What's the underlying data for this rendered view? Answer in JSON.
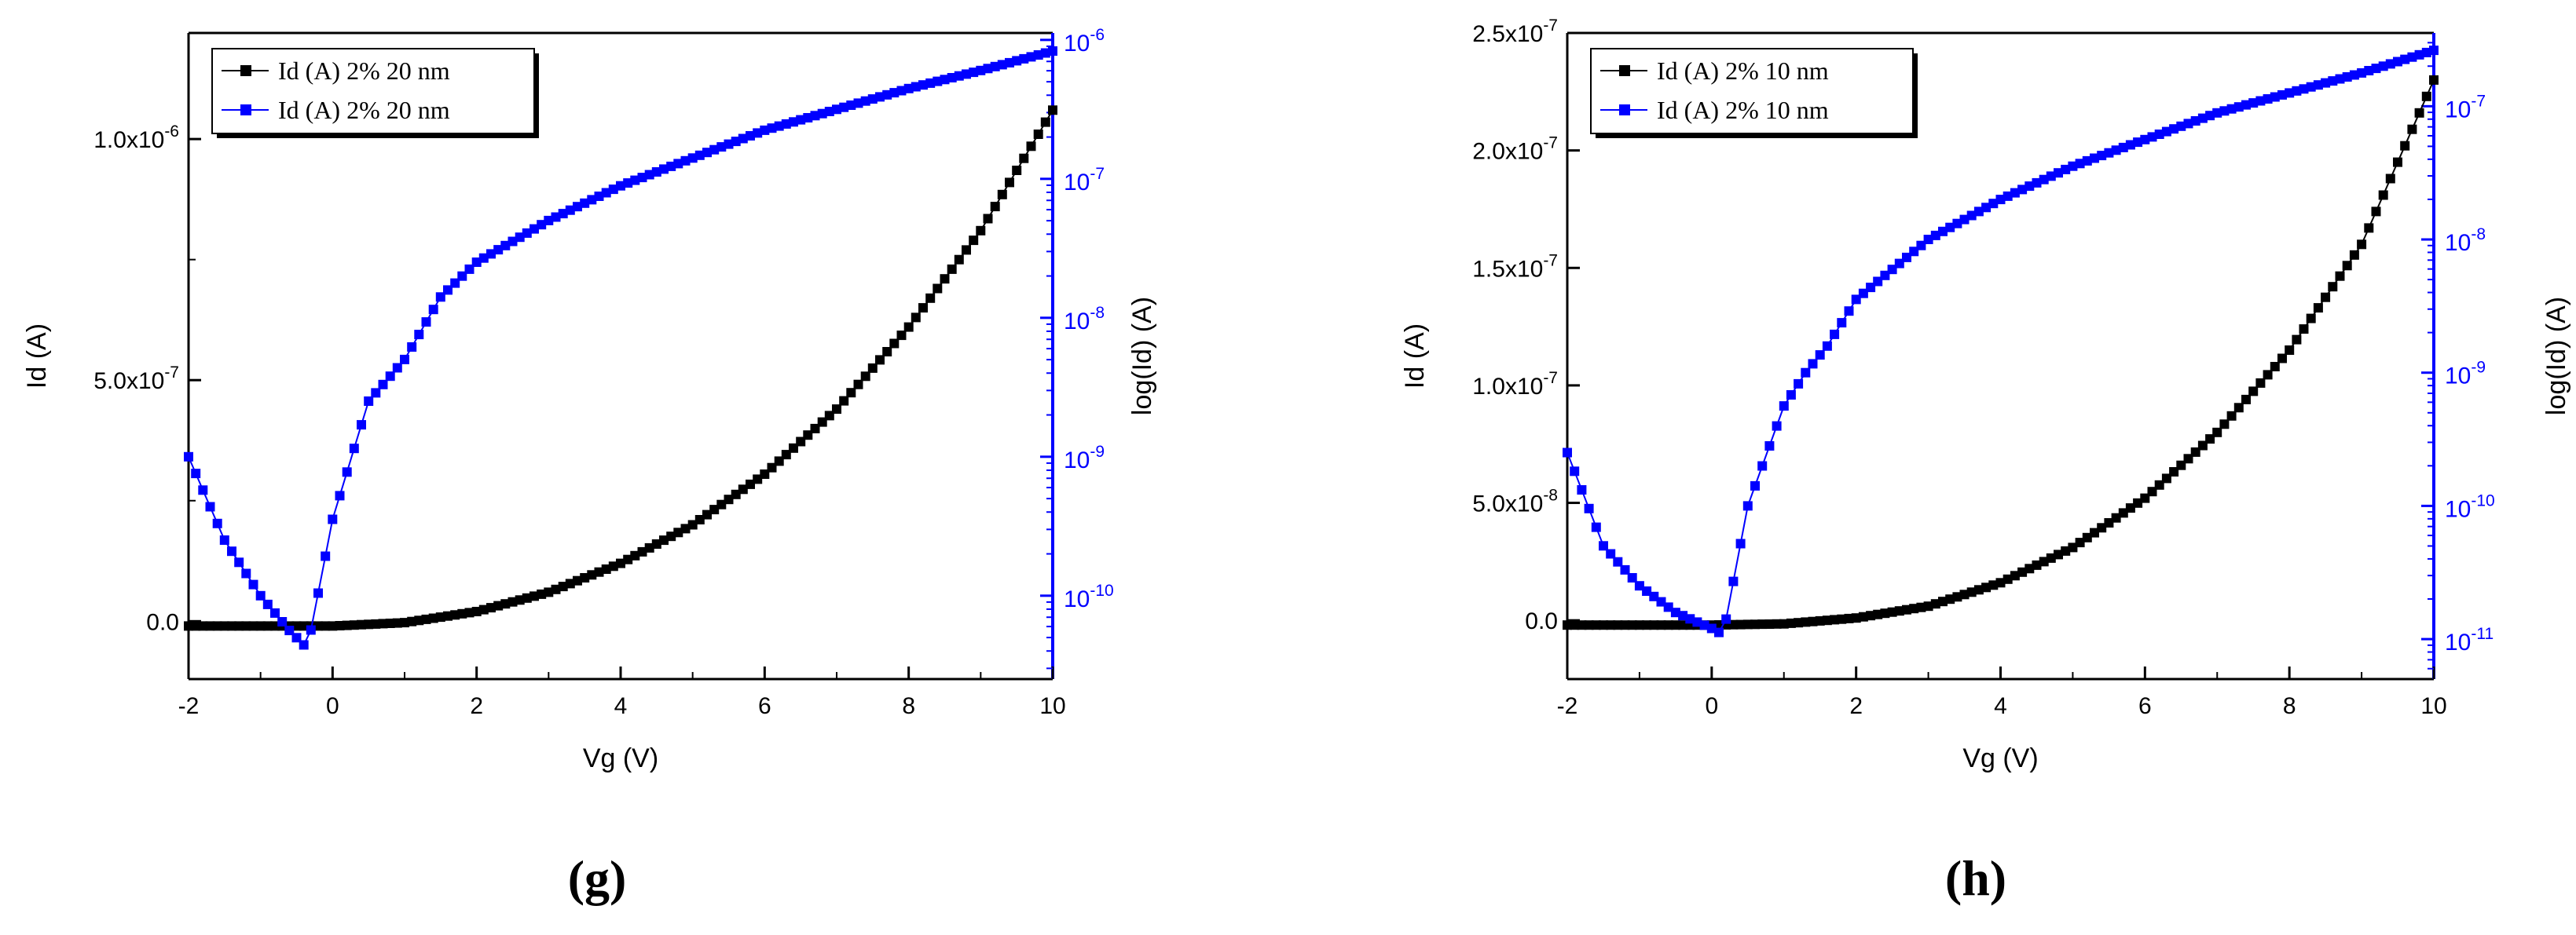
{
  "colors": {
    "left_series": "#000000",
    "right_series": "#0000ff",
    "axis": "#000000"
  },
  "chart_data": [
    {
      "panel_label": "(g)",
      "type": "line",
      "xlabel": "Vg (V)",
      "ylabel": "Id (A)",
      "y2label": "log(Id) (A)",
      "xlim": [
        -2,
        10
      ],
      "ylim": [
        -1.2e-07,
        1.22e-06
      ],
      "y2_log_range": [
        -10.6,
        -5.95
      ],
      "x_ticks": [
        {
          "v": -2,
          "label": "-2"
        },
        {
          "v": 0,
          "label": "0"
        },
        {
          "v": 2,
          "label": "2"
        },
        {
          "v": 4,
          "label": "4"
        },
        {
          "v": 6,
          "label": "6"
        },
        {
          "v": 8,
          "label": "8"
        },
        {
          "v": 10,
          "label": "10"
        }
      ],
      "y_ticks": [
        {
          "v": 0,
          "mant": "0.0",
          "exp": ""
        },
        {
          "v": 5e-07,
          "mant": "5.0x10",
          "exp": "-7"
        },
        {
          "v": 1e-06,
          "mant": "1.0x10",
          "exp": "-6"
        }
      ],
      "y_minor_ticks": [
        2.5e-07,
        7.5e-07
      ],
      "y2_ticks": [
        {
          "v": -10,
          "exp": "-10"
        },
        {
          "v": -9,
          "exp": "-9"
        },
        {
          "v": -8,
          "exp": "-8"
        },
        {
          "v": -7,
          "exp": "-7"
        },
        {
          "v": -6,
          "exp": "-6"
        }
      ],
      "legend": [
        "Id (A) 2% 20 nm",
        "Id (A) 2% 20 nm"
      ],
      "series_linear": {
        "name": "Id (A) 2% 20 nm",
        "x": [
          -2,
          0,
          1,
          2,
          3,
          4,
          5,
          6,
          7,
          8,
          9,
          10
        ],
        "y": [
          -1e-08,
          -1e-08,
          -3e-09,
          2e-08,
          6e-08,
          1.2e-07,
          2e-07,
          3.05e-07,
          4.4e-07,
          6.1e-07,
          8.1e-07,
          1.06e-06
        ]
      },
      "series_log": {
        "name": "Id (A) 2% 20 nm",
        "x": [
          -2,
          -1.5,
          -1.0,
          -0.6,
          -0.35,
          0,
          0.5,
          1.0,
          1.5,
          2,
          3,
          4,
          5,
          6,
          7,
          8,
          9,
          10
        ],
        "log_y": [
          -9.0,
          -9.6,
          -10.0,
          -10.25,
          -10.38,
          -9.45,
          -8.6,
          -8.3,
          -7.85,
          -7.6,
          -7.3,
          -7.05,
          -6.85,
          -6.65,
          -6.5,
          -6.35,
          -6.22,
          -6.08
        ]
      }
    },
    {
      "panel_label": "(h)",
      "type": "line",
      "xlabel": "Vg (V)",
      "ylabel": "Id (A)",
      "y2label": "log(Id) (A)",
      "xlim": [
        -2,
        10
      ],
      "ylim": [
        -2.5e-08,
        2.5e-07
      ],
      "y2_log_range": [
        -11.3,
        -6.45
      ],
      "x_ticks": [
        {
          "v": -2,
          "label": "-2"
        },
        {
          "v": 0,
          "label": "0"
        },
        {
          "v": 2,
          "label": "2"
        },
        {
          "v": 4,
          "label": "4"
        },
        {
          "v": 6,
          "label": "6"
        },
        {
          "v": 8,
          "label": "8"
        },
        {
          "v": 10,
          "label": "10"
        }
      ],
      "y_ticks": [
        {
          "v": 0,
          "mant": "0.0",
          "exp": ""
        },
        {
          "v": 5e-08,
          "mant": "5.0x10",
          "exp": "-8"
        },
        {
          "v": 1e-07,
          "mant": "1.0x10",
          "exp": "-7"
        },
        {
          "v": 1.5e-07,
          "mant": "1.5x10",
          "exp": "-7"
        },
        {
          "v": 2e-07,
          "mant": "2.0x10",
          "exp": "-7"
        },
        {
          "v": 2.5e-07,
          "mant": "2.5x10",
          "exp": "-7"
        }
      ],
      "y_minor_ticks": [],
      "y2_ticks": [
        {
          "v": -11,
          "exp": "-11"
        },
        {
          "v": -10,
          "exp": "-10"
        },
        {
          "v": -9,
          "exp": "-9"
        },
        {
          "v": -8,
          "exp": "-8"
        },
        {
          "v": -7,
          "exp": "-7"
        }
      ],
      "legend": [
        "Id (A) 2% 10 nm",
        "Id (A) 2% 10 nm"
      ],
      "series_linear": {
        "name": "Id (A) 2% 10 nm",
        "x": [
          -2,
          0,
          1,
          2,
          3,
          4,
          5,
          6,
          7,
          8,
          9,
          10
        ],
        "y": [
          -2e-09,
          -2e-09,
          -1.5e-09,
          1e-09,
          6e-09,
          1.6e-08,
          3.1e-08,
          5.2e-08,
          8e-08,
          1.15e-07,
          1.6e-07,
          2.3e-07
        ]
      },
      "series_log": {
        "name": "Id (A) 2% 10 nm",
        "x": [
          -2,
          -1.5,
          -1.0,
          -0.5,
          0,
          0.1,
          0.2,
          0.5,
          1.0,
          1.3,
          1.6,
          2,
          3,
          4,
          5,
          6,
          7,
          8,
          9,
          10
        ],
        "log_y": [
          -9.6,
          -10.3,
          -10.6,
          -10.8,
          -10.92,
          -10.95,
          -10.85,
          -10.0,
          -9.25,
          -9.0,
          -8.8,
          -8.45,
          -8.0,
          -7.7,
          -7.45,
          -7.25,
          -7.05,
          -6.9,
          -6.75,
          -6.58
        ]
      }
    }
  ]
}
